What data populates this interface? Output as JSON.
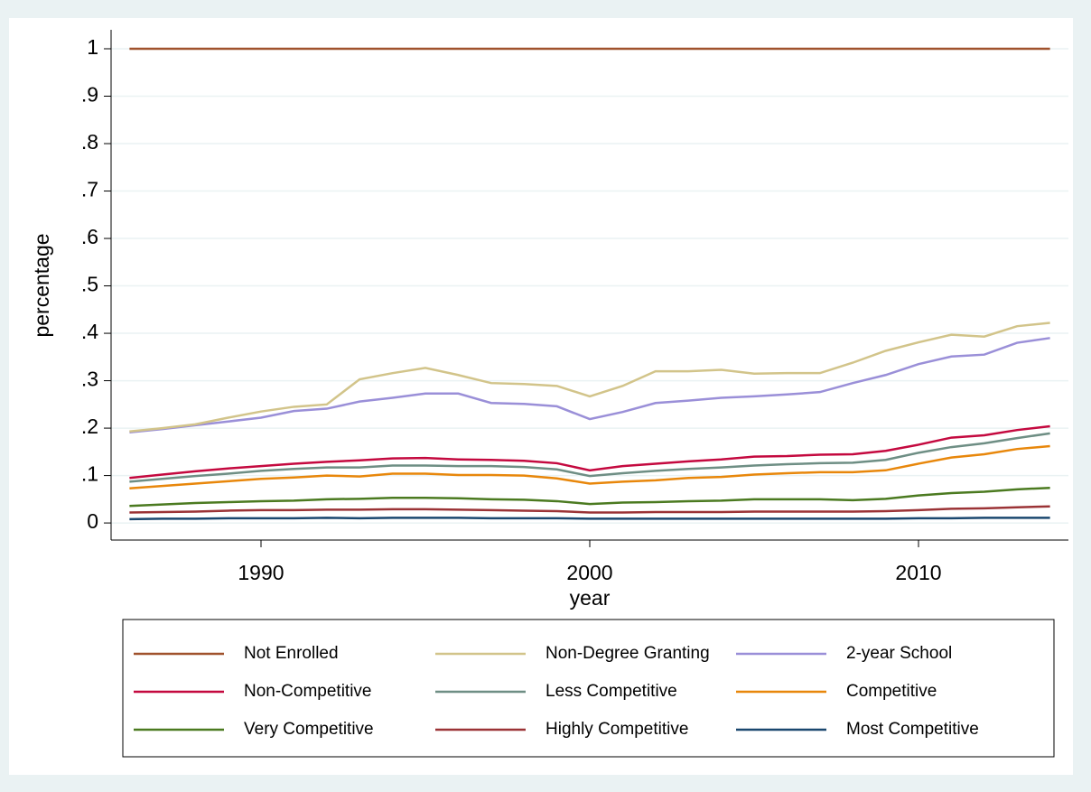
{
  "chart_data": {
    "type": "line",
    "x_label": "year",
    "y_label": "percentage",
    "x": [
      1986,
      1987,
      1988,
      1989,
      1990,
      1991,
      1992,
      1993,
      1994,
      1995,
      1996,
      1997,
      1998,
      1999,
      2000,
      2001,
      2002,
      2003,
      2004,
      2005,
      2006,
      2007,
      2008,
      2009,
      2010,
      2011,
      2012,
      2013,
      2014
    ],
    "series": [
      {
        "name": "Not Enrolled",
        "color": "#a0522d",
        "values": [
          1,
          1,
          1,
          1,
          1,
          1,
          1,
          1,
          1,
          1,
          1,
          1,
          1,
          1,
          1,
          1,
          1,
          1,
          1,
          1,
          1,
          1,
          1,
          1,
          1,
          1,
          1,
          1,
          1
        ]
      },
      {
        "name": "Non-Degree Granting",
        "color": "#d2c48a",
        "values": [
          0.193,
          0.2,
          0.208,
          0.222,
          0.235,
          0.245,
          0.25,
          0.303,
          0.316,
          0.327,
          0.312,
          0.295,
          0.293,
          0.289,
          0.267,
          0.289,
          0.32,
          0.32,
          0.323,
          0.315,
          0.316,
          0.316,
          0.338,
          0.363,
          0.381,
          0.397,
          0.393,
          0.415,
          0.422
        ]
      },
      {
        "name": "2-year School",
        "color": "#9a8fd8",
        "values": [
          0.191,
          0.198,
          0.206,
          0.214,
          0.222,
          0.236,
          0.241,
          0.256,
          0.264,
          0.273,
          0.273,
          0.253,
          0.251,
          0.246,
          0.219,
          0.234,
          0.253,
          0.258,
          0.264,
          0.267,
          0.271,
          0.276,
          0.295,
          0.312,
          0.335,
          0.351,
          0.355,
          0.38,
          0.39
        ]
      },
      {
        "name": "Non-Competitive",
        "color": "#c4093f",
        "values": [
          0.095,
          0.102,
          0.109,
          0.115,
          0.12,
          0.125,
          0.129,
          0.132,
          0.136,
          0.137,
          0.134,
          0.133,
          0.131,
          0.126,
          0.111,
          0.12,
          0.125,
          0.13,
          0.134,
          0.14,
          0.141,
          0.144,
          0.145,
          0.152,
          0.165,
          0.18,
          0.185,
          0.196,
          0.204
        ]
      },
      {
        "name": "Less Competitive",
        "color": "#6e8e84",
        "values": [
          0.087,
          0.093,
          0.099,
          0.104,
          0.11,
          0.114,
          0.117,
          0.117,
          0.121,
          0.121,
          0.12,
          0.12,
          0.118,
          0.113,
          0.099,
          0.105,
          0.11,
          0.114,
          0.117,
          0.121,
          0.124,
          0.126,
          0.127,
          0.133,
          0.148,
          0.16,
          0.168,
          0.179,
          0.189
        ]
      },
      {
        "name": "Competitive",
        "color": "#e8870b",
        "values": [
          0.073,
          0.078,
          0.083,
          0.088,
          0.093,
          0.096,
          0.1,
          0.098,
          0.104,
          0.104,
          0.101,
          0.101,
          0.1,
          0.094,
          0.083,
          0.087,
          0.09,
          0.095,
          0.097,
          0.102,
          0.105,
          0.107,
          0.107,
          0.111,
          0.125,
          0.138,
          0.145,
          0.156,
          0.162
        ]
      },
      {
        "name": "Very Competitive",
        "color": "#4b7a20",
        "values": [
          0.036,
          0.039,
          0.042,
          0.044,
          0.046,
          0.047,
          0.05,
          0.051,
          0.053,
          0.053,
          0.052,
          0.05,
          0.049,
          0.046,
          0.04,
          0.043,
          0.044,
          0.046,
          0.047,
          0.05,
          0.05,
          0.05,
          0.048,
          0.051,
          0.058,
          0.063,
          0.066,
          0.071,
          0.074
        ]
      },
      {
        "name": "Highly Competitive",
        "color": "#9b3336",
        "values": [
          0.022,
          0.023,
          0.024,
          0.026,
          0.027,
          0.027,
          0.028,
          0.028,
          0.029,
          0.029,
          0.028,
          0.027,
          0.026,
          0.025,
          0.022,
          0.022,
          0.023,
          0.023,
          0.023,
          0.024,
          0.024,
          0.024,
          0.024,
          0.025,
          0.027,
          0.03,
          0.031,
          0.033,
          0.035
        ]
      },
      {
        "name": "Most Competitive",
        "color": "#1a476f",
        "values": [
          0.008,
          0.009,
          0.009,
          0.01,
          0.01,
          0.01,
          0.011,
          0.01,
          0.011,
          0.011,
          0.011,
          0.01,
          0.01,
          0.01,
          0.009,
          0.009,
          0.009,
          0.009,
          0.009,
          0.009,
          0.009,
          0.009,
          0.009,
          0.009,
          0.01,
          0.01,
          0.011,
          0.011,
          0.011
        ]
      }
    ],
    "xlim": [
      1985.44,
      2014.56
    ],
    "xticks": [
      1990,
      2000,
      2010
    ],
    "ylim": [
      -0.036,
      1.04
    ],
    "yticks": [
      0,
      {
        "value": 0.1,
        "label": ".1"
      },
      {
        "value": 0.2,
        "label": ".2"
      },
      {
        "value": 0.3,
        "label": ".3"
      },
      {
        "value": 0.4,
        "label": ".4"
      },
      {
        "value": 0.5,
        "label": ".5"
      },
      {
        "value": 0.6,
        "label": ".6"
      },
      {
        "value": 0.7,
        "label": ".7"
      },
      {
        "value": 0.8,
        "label": ".8"
      },
      {
        "value": 0.9,
        "label": ".9"
      },
      1
    ],
    "grid": true,
    "legend": "bottom"
  }
}
